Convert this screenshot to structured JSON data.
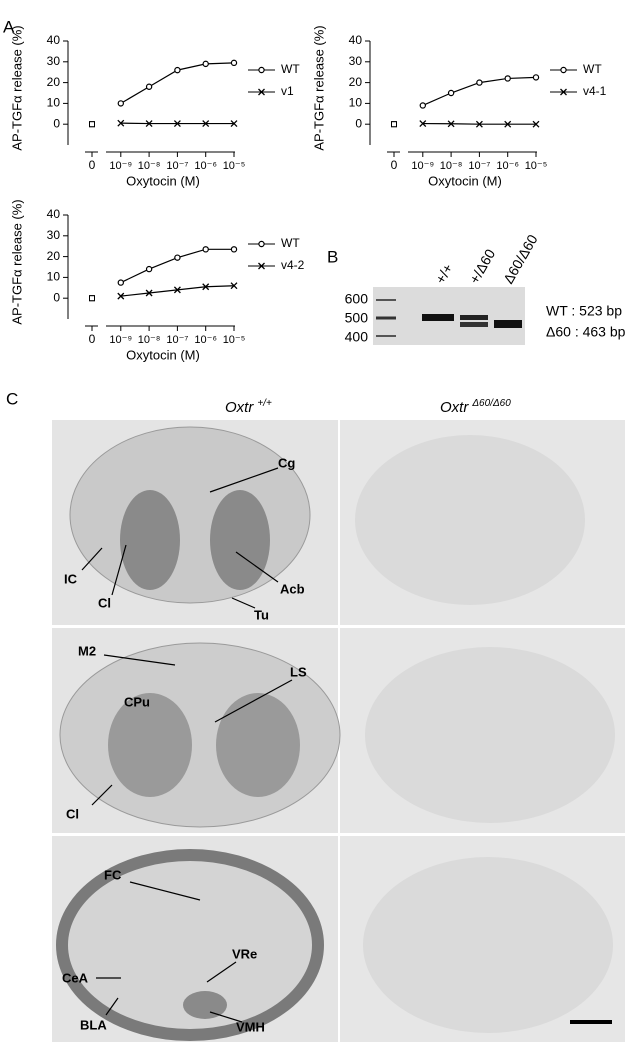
{
  "panel_labels": [
    "A",
    "B",
    "C"
  ],
  "chart_data": [
    {
      "type": "line",
      "ylabel": "AP-TGFα release (%)",
      "xlabel": "Oxytocin (M)",
      "xscale": "log",
      "x": [
        1e-09,
        1e-08,
        1e-07,
        1e-06,
        1e-05
      ],
      "xlim": [
        3e-10,
        1e-05
      ],
      "xticks": [
        {
          "value": 1e-09,
          "label": "10⁻⁹"
        },
        {
          "value": 1e-08,
          "label": "10⁻⁸"
        },
        {
          "value": 1e-07,
          "label": "10⁻⁷"
        },
        {
          "value": 1e-06,
          "label": "10⁻⁶"
        },
        {
          "value": 1e-05,
          "label": "10⁻⁵"
        }
      ],
      "x_zero_tick": "0",
      "ylim": [
        -10,
        40
      ],
      "yticks": [
        0,
        10,
        20,
        30,
        40
      ],
      "series": [
        {
          "name": "WT",
          "color": "#000000",
          "marker": "circle",
          "zero_value": 0,
          "values": [
            10,
            18,
            26,
            29,
            29.5
          ]
        },
        {
          "name": "v1",
          "color": "#000000",
          "marker": "cross",
          "zero_value": 0,
          "values": [
            0.5,
            0.3,
            0.3,
            0.3,
            0.3
          ]
        }
      ]
    },
    {
      "type": "line",
      "ylabel": "AP-TGFα release (%)",
      "xlabel": "Oxytocin (M)",
      "xscale": "log",
      "x": [
        1e-09,
        1e-08,
        1e-07,
        1e-06,
        1e-05
      ],
      "xlim": [
        3e-10,
        1e-05
      ],
      "xticks": [
        {
          "value": 1e-09,
          "label": "10⁻⁹"
        },
        {
          "value": 1e-08,
          "label": "10⁻⁸"
        },
        {
          "value": 1e-07,
          "label": "10⁻⁷"
        },
        {
          "value": 1e-06,
          "label": "10⁻⁶"
        },
        {
          "value": 1e-05,
          "label": "10⁻⁵"
        }
      ],
      "x_zero_tick": "0",
      "ylim": [
        -10,
        40
      ],
      "yticks": [
        0,
        10,
        20,
        30,
        40
      ],
      "series": [
        {
          "name": "WT",
          "color": "#000000",
          "marker": "circle",
          "zero_value": 0,
          "values": [
            9,
            15,
            20,
            22,
            22.5
          ]
        },
        {
          "name": "v4-1",
          "color": "#000000",
          "marker": "cross",
          "zero_value": 0,
          "values": [
            0.3,
            0.2,
            0,
            0,
            0
          ]
        }
      ]
    },
    {
      "type": "line",
      "ylabel": "AP-TGFα release (%)",
      "xlabel": "Oxytocin (M)",
      "xscale": "log",
      "x": [
        1e-09,
        1e-08,
        1e-07,
        1e-06,
        1e-05
      ],
      "xlim": [
        3e-10,
        1e-05
      ],
      "xticks": [
        {
          "value": 1e-09,
          "label": "10⁻⁹"
        },
        {
          "value": 1e-08,
          "label": "10⁻⁸"
        },
        {
          "value": 1e-07,
          "label": "10⁻⁷"
        },
        {
          "value": 1e-06,
          "label": "10⁻⁶"
        },
        {
          "value": 1e-05,
          "label": "10⁻⁵"
        }
      ],
      "x_zero_tick": "0",
      "ylim": [
        -10,
        40
      ],
      "yticks": [
        0,
        10,
        20,
        30,
        40
      ],
      "series": [
        {
          "name": "WT",
          "color": "#000000",
          "marker": "circle",
          "zero_value": 0,
          "values": [
            7.5,
            14,
            19.5,
            23.5,
            23.5
          ]
        },
        {
          "name": "v4-2",
          "color": "#000000",
          "marker": "cross",
          "zero_value": 0,
          "values": [
            1,
            2.5,
            4,
            5.5,
            6
          ]
        }
      ]
    }
  ],
  "gel": {
    "markers": [
      "600",
      "500",
      "400"
    ],
    "lanes": [
      "+/+",
      "+/Δ60",
      "Δ60/Δ60"
    ],
    "bands": [
      "WT : 523 bp",
      "Δ60 : 463 bp"
    ]
  },
  "histology": {
    "columns": [
      {
        "gene": "Oxtr",
        "genotype": "+/+"
      },
      {
        "gene": "Oxtr",
        "genotype": "Δ60/Δ60"
      }
    ],
    "rows": [
      [
        "Cg",
        "IC",
        "Cl",
        "Acb",
        "Tu"
      ],
      [
        "M2",
        "LS",
        "CPu",
        "Cl"
      ],
      [
        "FC",
        "CeA",
        "BLA",
        "VRe",
        "VMH"
      ]
    ]
  }
}
